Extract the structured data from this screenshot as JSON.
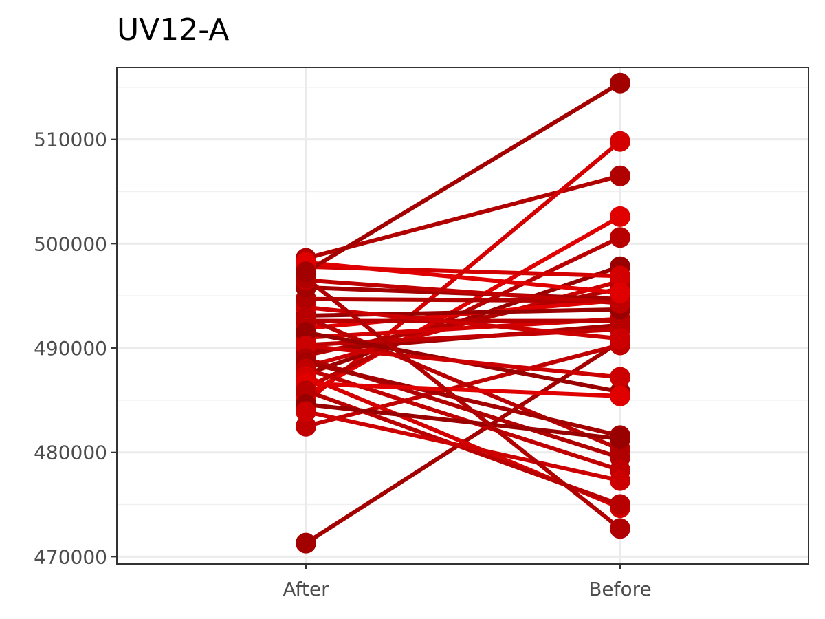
{
  "chart_data": {
    "type": "line",
    "title": "UV12-A",
    "xlabel": "",
    "ylabel": "",
    "categories": [
      "After",
      "Before"
    ],
    "ylim": [
      469300,
      516900
    ],
    "yticks": [
      470000,
      480000,
      490000,
      500000,
      510000
    ],
    "ytick_labels": [
      "470000",
      "480000",
      "490000",
      "500000",
      "510000"
    ],
    "grid": true,
    "legend": "none",
    "pairs": [
      [
        498600,
        506500
      ],
      [
        471300,
        490600
      ],
      [
        482500,
        490300
      ],
      [
        484800,
        509800
      ],
      [
        485500,
        502600
      ],
      [
        486200,
        500600
      ],
      [
        487500,
        497800
      ],
      [
        488200,
        496400
      ],
      [
        489300,
        495700
      ],
      [
        489700,
        492200
      ],
      [
        490300,
        491800
      ],
      [
        491000,
        492800
      ],
      [
        491900,
        494600
      ],
      [
        492600,
        492600
      ],
      [
        493100,
        493700
      ],
      [
        493900,
        490900
      ],
      [
        494700,
        494500
      ],
      [
        495800,
        494700
      ],
      [
        496500,
        494300
      ],
      [
        497800,
        496900
      ],
      [
        498200,
        495300
      ],
      [
        492900,
        480300
      ],
      [
        491500,
        485800
      ],
      [
        490200,
        487200
      ],
      [
        489000,
        479500
      ],
      [
        488600,
        481600
      ],
      [
        488000,
        478300
      ],
      [
        487300,
        474700
      ],
      [
        486600,
        485400
      ],
      [
        485900,
        475000
      ],
      [
        484600,
        481300
      ],
      [
        483900,
        477300
      ],
      [
        496700,
        472700
      ],
      [
        497300,
        515400
      ]
    ],
    "colors": [
      "#b00000",
      "#a30000",
      "#c00000",
      "#d40000",
      "#e00000",
      "#b80000",
      "#990000",
      "#cc0000"
    ]
  }
}
